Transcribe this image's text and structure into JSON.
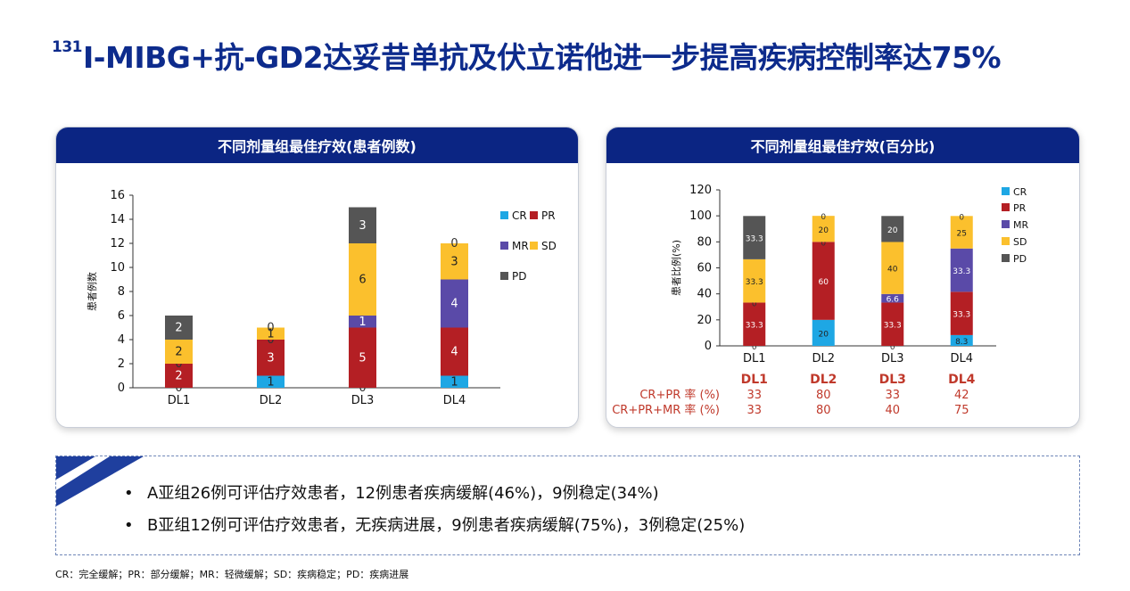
{
  "header": {
    "title_sup": "131",
    "title_text": "I-MIBG+抗-GD2达妥昔单抗及伏立诺他进一步提高疾病控制率达75%"
  },
  "colors": {
    "CR": "#1ea7e4",
    "PR": "#b41f24",
    "MR": "#5a4aa8",
    "SD": "#fbc02d",
    "PD": "#555555",
    "header_bg": "#0b2583",
    "rate_label": "#c0392b"
  },
  "chart_data": [
    {
      "type": "bar",
      "title": "不同剂量组最佳疗效(患者例数)",
      "ylabel": "患者例数",
      "stacked": true,
      "categories": [
        "DL1",
        "DL2",
        "DL3",
        "DL4"
      ],
      "ylim": [
        0,
        16
      ],
      "yticks": [
        0,
        2,
        4,
        6,
        8,
        10,
        12,
        14,
        16
      ],
      "series": [
        {
          "name": "CR",
          "values": [
            0,
            1,
            0,
            1
          ],
          "labels": [
            "0",
            "1",
            "0",
            "1"
          ]
        },
        {
          "name": "PR",
          "values": [
            2,
            3,
            5,
            4
          ],
          "labels": [
            "2",
            "3",
            "5",
            "4"
          ]
        },
        {
          "name": "MR",
          "values": [
            0,
            0,
            1,
            4
          ],
          "labels": [
            "0",
            "0",
            "1",
            "4"
          ]
        },
        {
          "name": "SD",
          "values": [
            2,
            1,
            6,
            3
          ],
          "labels": [
            "2",
            "1",
            "6",
            "3"
          ]
        },
        {
          "name": "PD",
          "values": [
            2,
            0,
            3,
            0
          ],
          "labels": [
            "2",
            "0",
            "3",
            "0"
          ]
        }
      ],
      "legend_position": "right"
    },
    {
      "type": "bar",
      "title": "不同剂量组最佳疗效(百分比)",
      "ylabel": "患者比例(%)",
      "stacked": true,
      "categories": [
        "DL1",
        "DL2",
        "DL3",
        "DL4"
      ],
      "ylim": [
        0,
        120
      ],
      "yticks": [
        0,
        20,
        40,
        60,
        80,
        100,
        120
      ],
      "series": [
        {
          "name": "CR",
          "values": [
            0,
            20,
            0,
            8.3
          ],
          "labels": [
            "0",
            "20",
            "0",
            "8.3"
          ]
        },
        {
          "name": "PR",
          "values": [
            33.3,
            60,
            33.3,
            33.3
          ],
          "labels": [
            "33.3",
            "60",
            "33.3",
            "33.3"
          ]
        },
        {
          "name": "MR",
          "values": [
            0,
            0,
            6.6,
            33.3
          ],
          "labels": [
            "0",
            "0",
            "6.6",
            "33.3"
          ]
        },
        {
          "name": "SD",
          "values": [
            33.3,
            20,
            40,
            25
          ],
          "labels": [
            "33.3",
            "20",
            "40",
            "25"
          ]
        },
        {
          "name": "PD",
          "values": [
            33.3,
            0,
            20,
            0
          ],
          "labels": [
            "33.3",
            "0",
            "20",
            "0"
          ]
        }
      ],
      "legend_position": "right",
      "rate_table": {
        "headers": [
          "DL1",
          "DL2",
          "DL3",
          "DL4"
        ],
        "rows": [
          {
            "label": "CR+PR 率 (%)",
            "values": [
              "33",
              "80",
              "33",
              "42"
            ]
          },
          {
            "label": "CR+PR+MR 率 (%)",
            "values": [
              "33",
              "80",
              "40",
              "75"
            ]
          }
        ]
      }
    }
  ],
  "summary": {
    "bullets": [
      "A亚组26例可评估疗效患者，12例患者疾病缓解(46%)，9例稳定(34%)",
      "B亚组12例可评估疗效患者，无疾病进展，9例患者疾病缓解(75%)，3例稳定(25%)"
    ],
    "bullet_symbol": "•"
  },
  "footnote": "CR：完全缓解；PR：部分缓解；MR：轻微缓解；SD：疾病稳定；PD：疾病进展"
}
